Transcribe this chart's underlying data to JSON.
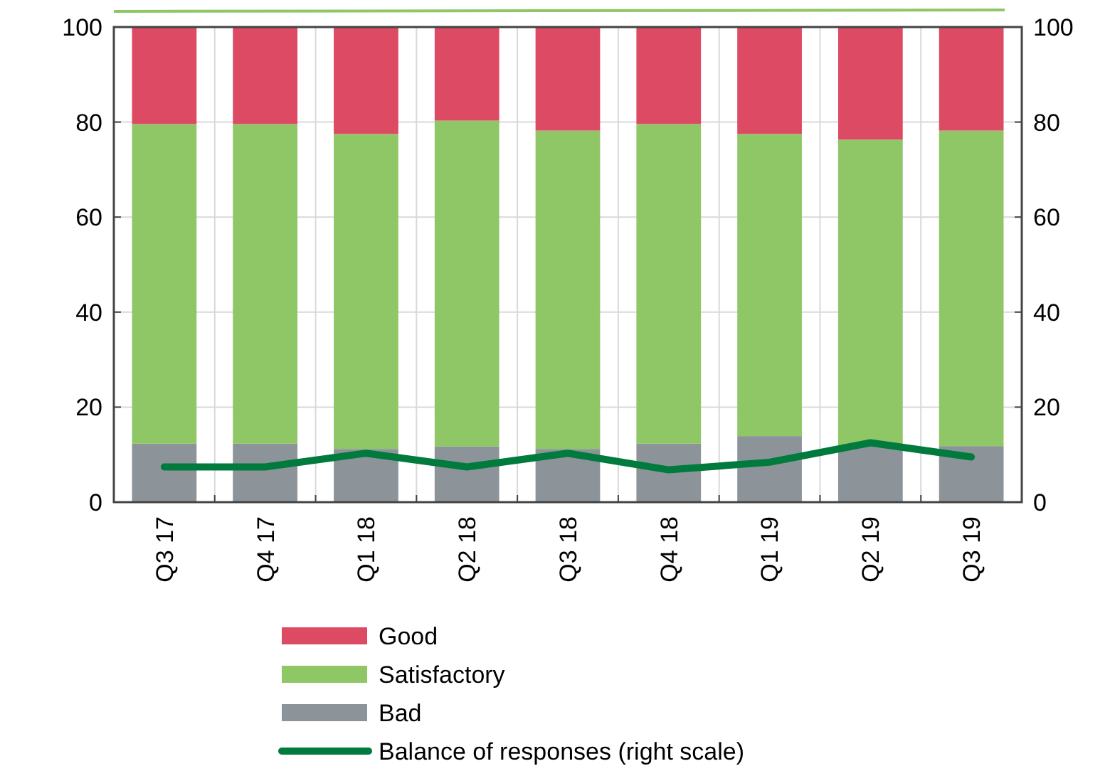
{
  "chart_data": {
    "type": "bar",
    "stacked": true,
    "categories": [
      "Q3 17",
      "Q4 17",
      "Q1 18",
      "Q2 18",
      "Q3 18",
      "Q4 18",
      "Q1 19",
      "Q2 19",
      "Q3 19"
    ],
    "series": [
      {
        "name": "Bad",
        "color": "#8c949a",
        "values": [
          12.3,
          12.3,
          11.2,
          11.7,
          11.2,
          12.3,
          13.9,
          12,
          11.8
        ]
      },
      {
        "name": "Satisfactory",
        "color": "#8fc666",
        "values": [
          67.3,
          67.3,
          66.3,
          68.6,
          67,
          67.3,
          63.6,
          64.3,
          66.4
        ]
      },
      {
        "name": "Good",
        "color": "#dc4a64",
        "values": [
          20.4,
          20.4,
          22.5,
          19.7,
          21.8,
          20.4,
          22.5,
          23.7,
          21.8
        ]
      },
      {
        "name": "Balance of responses (right scale)",
        "type": "line",
        "axis": "y2",
        "color": "#007a3d",
        "values": [
          7.4,
          7.4,
          10.3,
          7.4,
          10.3,
          6.8,
          8.4,
          12.5,
          9.5
        ]
      }
    ],
    "ylim": [
      0,
      100
    ],
    "yticks": [
      0,
      20,
      40,
      60,
      80,
      100
    ],
    "y2lim": [
      0,
      100
    ],
    "y2ticks": [
      0,
      20,
      40,
      60,
      80,
      100
    ],
    "grid": true,
    "legend": "bottom"
  }
}
